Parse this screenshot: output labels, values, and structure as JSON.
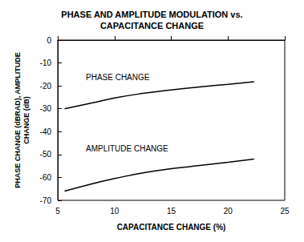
{
  "chart_data": {
    "type": "line",
    "title": "PHASE AND AMPLITUDE MODULATION vs.\nCAPACITANCE CHANGE",
    "x_label": "CAPACITANCE CHANGE (%)",
    "y_label": "PHASE CHANGE (dBRAD), AMPLITUDE\nCHANGE (dB)",
    "x": [
      5.6,
      8,
      10,
      12.5,
      15,
      17.5,
      20,
      22.3
    ],
    "series": [
      {
        "name": "PHASE CHANGE",
        "color": "#000000",
        "values": [
          -30,
          -27.5,
          -25.3,
          -23.3,
          -21.8,
          -20.5,
          -19.3,
          -18.2
        ]
      },
      {
        "name": "AMPLITUDE CHANGE",
        "color": "#000000",
        "values": [
          -66,
          -62.8,
          -60.5,
          -58,
          -56.2,
          -54.8,
          -53.4,
          -52
        ]
      }
    ],
    "xlim": [
      5,
      25
    ],
    "xticks": [
      5,
      10,
      15,
      20,
      25
    ],
    "ylim": [
      -70,
      0
    ],
    "yticks": [
      -70,
      -60,
      -50,
      -40,
      -30,
      -20,
      -10,
      0
    ],
    "grid": false
  }
}
